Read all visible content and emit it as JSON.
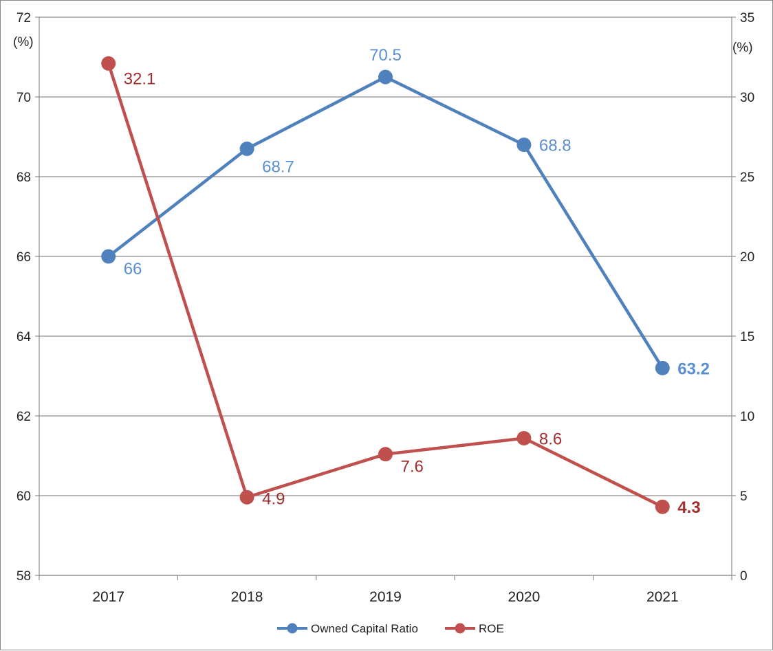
{
  "chart_data": {
    "type": "line",
    "categories": [
      "2017",
      "2018",
      "2019",
      "2020",
      "2021"
    ],
    "left_axis": {
      "unit": "(%)",
      "ylim": [
        58,
        72
      ],
      "ticks": [
        "58",
        "60",
        "62",
        "64",
        "66",
        "68",
        "70",
        "72"
      ]
    },
    "right_axis": {
      "unit": "(%)",
      "ylim": [
        0,
        35
      ],
      "ticks": [
        "0",
        "5",
        "10",
        "15",
        "20",
        "25",
        "30",
        "35"
      ]
    },
    "grid": true,
    "legend": "bottom",
    "series": [
      {
        "name": "Owned Capital Ratio",
        "axis": "left",
        "color": "#4f81bd",
        "label_color": "#5b8fcf",
        "values": [
          66,
          68.7,
          70.5,
          68.8,
          63.2
        ],
        "labels": [
          "66",
          "68.7",
          "70.5",
          "68.8",
          "63.2"
        ],
        "bold_last_label": true
      },
      {
        "name": "ROE",
        "axis": "right",
        "color": "#c0504d",
        "label_color": "#a0302e",
        "values": [
          32.1,
          4.9,
          7.6,
          8.6,
          4.3
        ],
        "labels": [
          "32.1",
          "4.9",
          "7.6",
          "8.6",
          "4.3"
        ],
        "bold_last_label": true
      }
    ]
  }
}
